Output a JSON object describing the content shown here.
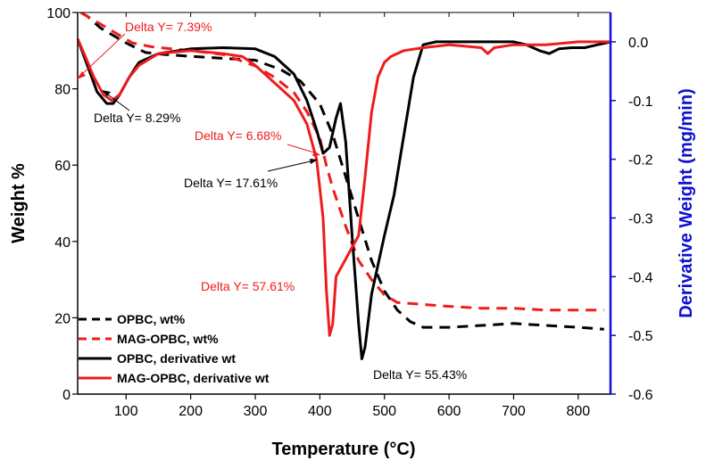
{
  "chart_data": {
    "type": "line",
    "xlabel": "Temperature (°C)",
    "ylabel_left": "Weight %",
    "ylabel_right": "Derivative Weight (mg/min)",
    "xlim": [
      25,
      850
    ],
    "ylim_left": [
      0,
      100
    ],
    "ylim_right": [
      -0.6,
      0.05
    ],
    "x_ticks": [
      100,
      200,
      300,
      400,
      500,
      600,
      700,
      800
    ],
    "y_left_ticks": [
      0,
      20,
      40,
      60,
      80,
      100
    ],
    "y_right_ticks": [
      -0.6,
      -0.5,
      -0.4,
      -0.3,
      -0.2,
      -0.1,
      0.0
    ],
    "y_right_tick_labels": [
      "-0.6",
      "-0.5",
      "-0.4",
      "-0.3",
      "-0.2",
      "-0.1",
      "0.0"
    ],
    "colors": {
      "black": "#000000",
      "red": "#ee1c1c",
      "right_axis": "#1010d0"
    },
    "series": [
      {
        "name": "OPBC, wt%",
        "axis": "left",
        "style": "dashed",
        "color": "#000000",
        "x": [
          30,
          40,
          60,
          80,
          100,
          130,
          160,
          200,
          250,
          300,
          340,
          370,
          400,
          420,
          440,
          460,
          480,
          500,
          520,
          540,
          560,
          600,
          650,
          700,
          750,
          800,
          840
        ],
        "y": [
          100,
          99,
          96,
          94,
          92,
          89.5,
          89,
          88.5,
          88,
          87.5,
          85,
          82,
          76,
          68,
          57,
          46,
          35,
          27,
          22,
          19,
          17.5,
          17.5,
          18,
          18.5,
          18,
          17.5,
          17
        ]
      },
      {
        "name": "MAG-OPBC, wt%",
        "axis": "left",
        "style": "dashed",
        "color": "#ee1c1c",
        "x": [
          30,
          50,
          70,
          90,
          110,
          140,
          170,
          200,
          250,
          300,
          330,
          360,
          380,
          400,
          410,
          420,
          430,
          440,
          460,
          480,
          500,
          520,
          560,
          600,
          650,
          700,
          750,
          800,
          840
        ],
        "y": [
          100,
          98,
          96,
          94,
          92,
          91,
          90.5,
          90,
          89,
          86,
          83,
          79,
          74,
          67,
          60,
          54,
          49,
          44,
          35,
          30,
          26,
          24,
          23.5,
          23,
          22.5,
          22.5,
          22,
          22,
          22
        ]
      },
      {
        "name": "OPBC, derivative wt",
        "axis": "right",
        "style": "solid",
        "color": "#000000",
        "x": [
          25,
          40,
          55,
          70,
          80,
          90,
          105,
          120,
          150,
          200,
          250,
          300,
          330,
          360,
          380,
          395,
          405,
          415,
          425,
          432,
          440,
          450,
          460,
          465,
          470,
          480,
          490,
          500,
          515,
          530,
          545,
          560,
          580,
          620,
          700,
          720,
          740,
          755,
          770,
          790,
          810,
          830,
          850
        ],
        "y": [
          0.005,
          -0.04,
          -0.085,
          -0.105,
          -0.105,
          -0.09,
          -0.06,
          -0.035,
          -0.02,
          -0.012,
          -0.01,
          -0.012,
          -0.025,
          -0.055,
          -0.1,
          -0.15,
          -0.19,
          -0.18,
          -0.13,
          -0.105,
          -0.17,
          -0.33,
          -0.48,
          -0.54,
          -0.52,
          -0.43,
          -0.38,
          -0.33,
          -0.26,
          -0.16,
          -0.06,
          -0.005,
          0.0,
          0.0,
          0.0,
          -0.005,
          -0.015,
          -0.02,
          -0.012,
          -0.01,
          -0.01,
          -0.005,
          0.0
        ]
      },
      {
        "name": "MAG-OPBC, derivative wt",
        "axis": "right",
        "style": "solid",
        "color": "#ee1c1c",
        "x": [
          25,
          35,
          50,
          65,
          78,
          90,
          105,
          120,
          150,
          200,
          250,
          280,
          300,
          330,
          360,
          380,
          395,
          405,
          410,
          415,
          420,
          425,
          430,
          440,
          450,
          460,
          470,
          480,
          490,
          500,
          510,
          530,
          560,
          600,
          650,
          660,
          670,
          700,
          750,
          800,
          850
        ],
        "y": [
          0.005,
          -0.02,
          -0.06,
          -0.09,
          -0.1,
          -0.09,
          -0.06,
          -0.04,
          -0.02,
          -0.015,
          -0.02,
          -0.025,
          -0.04,
          -0.07,
          -0.1,
          -0.14,
          -0.2,
          -0.3,
          -0.42,
          -0.5,
          -0.48,
          -0.4,
          -0.39,
          -0.37,
          -0.35,
          -0.33,
          -0.23,
          -0.12,
          -0.06,
          -0.035,
          -0.025,
          -0.015,
          -0.01,
          -0.005,
          -0.01,
          -0.02,
          -0.01,
          -0.005,
          -0.005,
          0.0,
          0.0
        ]
      }
    ],
    "annotations": [
      {
        "text": "Delta Y= 7.39%",
        "color": "#ee1c1c"
      },
      {
        "text": "Delta Y= 8.29%",
        "color": "#000000"
      },
      {
        "text": "Delta Y= 6.68%",
        "color": "#ee1c1c"
      },
      {
        "text": "Delta Y= 17.61%",
        "color": "#000000"
      },
      {
        "text": "Delta Y= 57.61%",
        "color": "#ee1c1c"
      },
      {
        "text": "Delta Y= 55.43%",
        "color": "#000000"
      }
    ],
    "legend_position": "bottom-left"
  }
}
